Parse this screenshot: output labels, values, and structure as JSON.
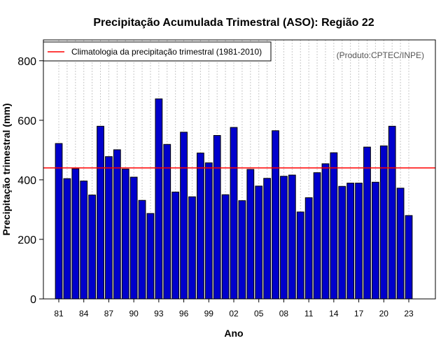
{
  "chart_data": {
    "type": "bar",
    "title": "Precipitação Acumulada Trimestral (ASO): Região 22",
    "xlabel": "Ano",
    "ylabel": "Precipitação trimestral (mm)",
    "ylim": [
      0,
      870
    ],
    "yticks": [
      0,
      200,
      400,
      600,
      800
    ],
    "grid": true,
    "bar_color": "#0000cc",
    "bar_edge_color": "#000000",
    "line_color": "#ff0000",
    "categories": [
      "1981",
      "1982",
      "1983",
      "1984",
      "1985",
      "1986",
      "1987",
      "1988",
      "1989",
      "1990",
      "1991",
      "1992",
      "1993",
      "1994",
      "1995",
      "1996",
      "1997",
      "1998",
      "1999",
      "2000",
      "2001",
      "2002",
      "2003",
      "2004",
      "2005",
      "2006",
      "2007",
      "2008",
      "2009",
      "2010",
      "2011",
      "2012",
      "2013",
      "2014",
      "2015",
      "2016",
      "2017",
      "2018",
      "2019",
      "2020",
      "2021",
      "2022",
      "2023"
    ],
    "values": [
      522,
      404,
      437,
      396,
      349,
      580,
      478,
      501,
      436,
      409,
      331,
      287,
      672,
      519,
      359,
      560,
      343,
      490,
      457,
      549,
      350,
      576,
      330,
      435,
      379,
      405,
      565,
      412,
      416,
      292,
      340,
      424,
      454,
      491,
      378,
      389,
      389,
      510,
      392,
      514,
      580,
      372,
      280
    ],
    "xtick_labels": [
      "81",
      "84",
      "87",
      "90",
      "93",
      "96",
      "99",
      "02",
      "05",
      "08",
      "11",
      "14",
      "17",
      "20",
      "23"
    ],
    "climatology": 440,
    "legend": {
      "position": "top-left",
      "entries": [
        {
          "label": "Climatologia da precipitação trimestral (1981-2010)",
          "color": "#ff0000"
        }
      ]
    },
    "source_note": "(Produto:CPTEC/INPE)"
  }
}
